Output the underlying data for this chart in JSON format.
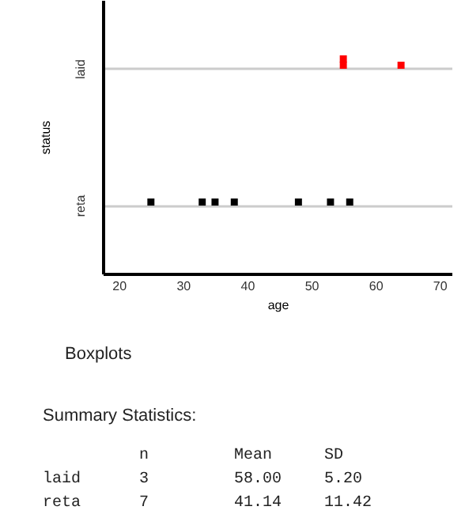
{
  "chart_data": {
    "type": "scatter",
    "orientation": "horizontal",
    "xlabel": "age",
    "ylabel": "status",
    "categories": [
      "laid",
      "reta"
    ],
    "series": [
      {
        "color": "#ff0000",
        "x": [
          "laid",
          "laid",
          "laid"
        ],
        "values": [
          55,
          55,
          64
        ]
      },
      {
        "color": "#000000",
        "x": [
          "reta",
          "reta",
          "reta",
          "reta",
          "reta",
          "reta",
          "reta"
        ],
        "values": [
          25,
          33,
          35,
          38,
          48,
          53,
          56
        ]
      }
    ],
    "xlim": [
      17.5,
      72
    ],
    "xticks": [
      20,
      30,
      40,
      50,
      60,
      70
    ],
    "grid": "y",
    "marker": "square",
    "annotations": [
      "Boxplots",
      "Summary Statistics:",
      "n Mean SD",
      "laid 3 58.00 5.20",
      "reta 7 41.14 11.42"
    ]
  }
}
